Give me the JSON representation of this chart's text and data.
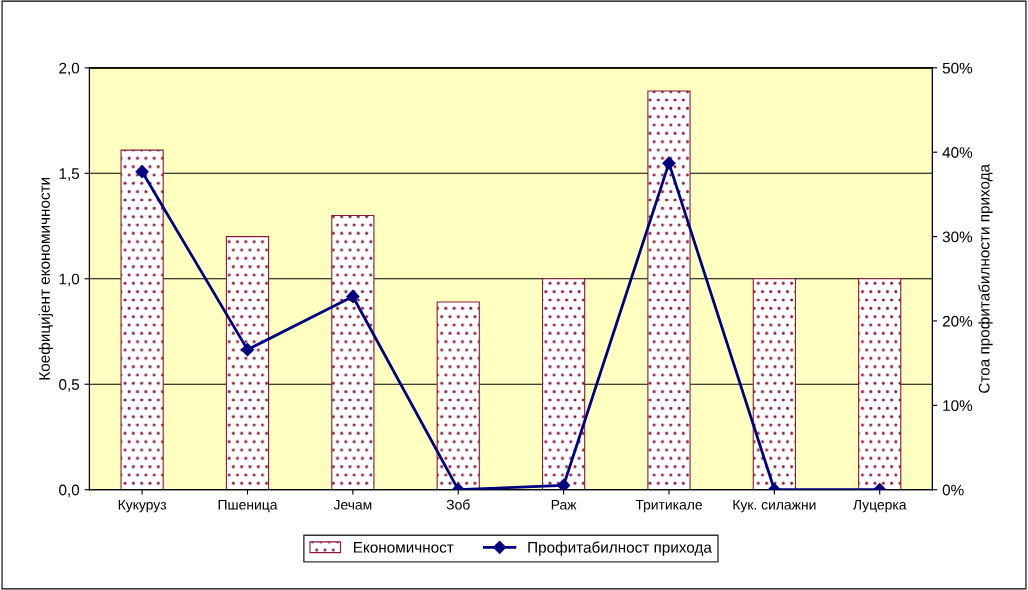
{
  "chart_data": {
    "type": "bar",
    "ylabel": "Коефицијент економичности",
    "y2label": "Стоа профитабилности прихода",
    "categories": [
      "Кукуруз",
      "Пшеница",
      "Јечам",
      "Зоб",
      "Раж",
      "Тритикале",
      "Кук. силажни",
      "Луцерка"
    ],
    "series": [
      {
        "name": "Економичност",
        "color": "#8b1a3a",
        "values": [
          1.61,
          1.2,
          1.3,
          0.89,
          1.0,
          1.89,
          1.0,
          1.0
        ]
      },
      {
        "name": "Профитабилност прихода",
        "type": "line",
        "axis": "y2",
        "color": "#000080",
        "marker": "diamond",
        "values": [
          37.7,
          16.6,
          22.9,
          0,
          0.5,
          38.7,
          0,
          0
        ]
      }
    ],
    "ylim": [
      0,
      2
    ],
    "yticks": [
      {
        "value": 0,
        "label": "0,0"
      },
      {
        "value": 0.5,
        "label": "0,5"
      },
      {
        "value": 1,
        "label": "1,0"
      },
      {
        "value": 1.5,
        "label": "1,5"
      },
      {
        "value": 2,
        "label": "2,0"
      }
    ],
    "y2lim": [
      0,
      50
    ],
    "y2ticks": [
      {
        "value": 0,
        "label": "0%"
      },
      {
        "value": 10,
        "label": "10%"
      },
      {
        "value": 20,
        "label": "20%"
      },
      {
        "value": 30,
        "label": "30%"
      },
      {
        "value": 40,
        "label": "40%"
      },
      {
        "value": 50,
        "label": "50%"
      }
    ],
    "grid": "y",
    "legend": "bottom"
  }
}
